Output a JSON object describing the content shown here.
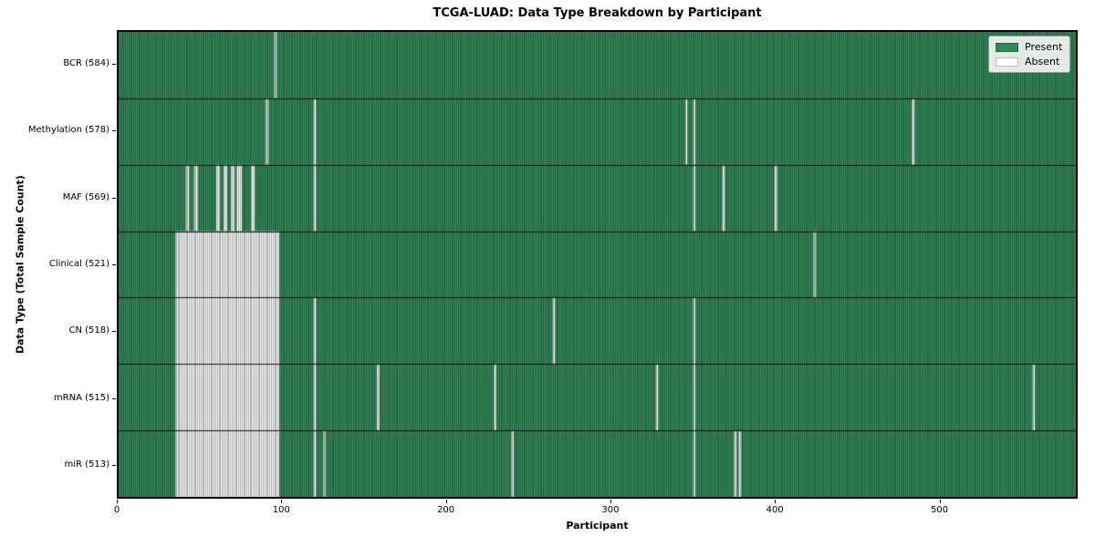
{
  "title": "TCGA-LUAD: Data Type Breakdown by Participant",
  "axes": {
    "x_label": "Participant",
    "y_label": "Data Type (Total Sample Count)",
    "x_ticks": [
      0,
      100,
      200,
      300,
      400,
      500
    ]
  },
  "legend": {
    "items": [
      {
        "label": "Present",
        "color": "#2e8b57"
      },
      {
        "label": "Absent",
        "color": "#ffffff"
      }
    ]
  },
  "colors": {
    "present": "#2e8b57",
    "absent": "#ffffff",
    "cell_edge": "rgba(40,40,40,0.5)",
    "row_separator": "#111111",
    "plot_border": "#000000"
  },
  "chart_data": {
    "type": "heatmap",
    "x_range": [
      0,
      584
    ],
    "legend_position": "upper right",
    "rows": [
      {
        "label": "BCR",
        "count": 584,
        "display": "BCR (584)",
        "absent": [
          [
            95,
            96.5
          ]
        ]
      },
      {
        "label": "Methylation",
        "count": 578,
        "display": "Methylation (578)",
        "absent": [
          [
            89.8,
            91.5
          ],
          [
            119,
            120.5
          ],
          [
            345.8,
            347
          ],
          [
            350.5,
            351.8
          ],
          [
            484,
            485.6
          ]
        ]
      },
      {
        "label": "MAF",
        "count": 569,
        "display": "MAF (569)",
        "absent": [
          [
            41,
            43
          ],
          [
            46,
            48.4
          ],
          [
            59.6,
            61.9
          ],
          [
            64,
            66.3
          ],
          [
            68.6,
            70.8
          ],
          [
            71.9,
            75.2
          ],
          [
            80.8,
            83
          ],
          [
            119,
            120.5
          ],
          [
            350.5,
            351.8
          ],
          [
            368.4,
            369.9
          ],
          [
            400.2,
            401.7
          ]
        ]
      },
      {
        "label": "Clinical",
        "count": 521,
        "display": "Clinical (521)",
        "absent": [
          [
            34.8,
            98
          ],
          [
            424,
            425.5
          ]
        ]
      },
      {
        "label": "CN",
        "count": 518,
        "display": "CN (518)",
        "absent": [
          [
            34.8,
            98
          ],
          [
            119,
            120.5
          ],
          [
            264.9,
            266.2
          ],
          [
            350.5,
            351.8
          ]
        ]
      },
      {
        "label": "mRNA",
        "count": 515,
        "display": "mRNA (515)",
        "absent": [
          [
            34.8,
            98
          ],
          [
            119,
            120.5
          ],
          [
            157.6,
            159.1
          ],
          [
            229,
            230.4
          ],
          [
            327.8,
            329.2
          ],
          [
            350.5,
            351.8
          ],
          [
            557.5,
            559
          ]
        ]
      },
      {
        "label": "miR",
        "count": 513,
        "display": "miR (513)",
        "absent": [
          [
            34.8,
            98
          ],
          [
            119,
            120.5
          ],
          [
            125,
            126.4
          ],
          [
            239.7,
            241
          ],
          [
            350.5,
            351.8
          ],
          [
            375.3,
            377
          ],
          [
            378.3,
            379.8
          ]
        ]
      }
    ]
  }
}
